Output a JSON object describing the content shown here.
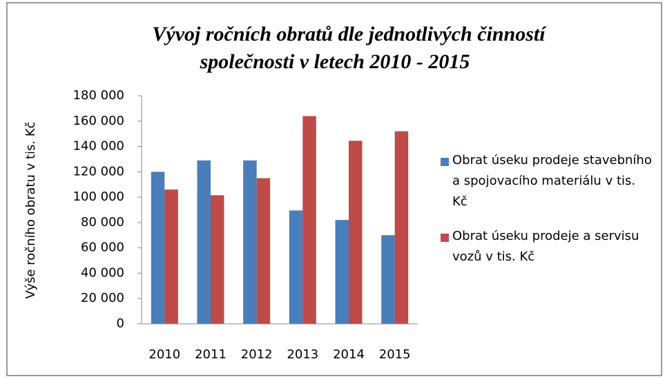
{
  "chart_data": {
    "type": "bar",
    "title": [
      "Vývoj ročních obratů dle jednotlivých činností",
      "společnosti v letech 2010 - 2015"
    ],
    "y_label": "Výše ročního obratu v tis. Kč",
    "categories": [
      "2010",
      "2011",
      "2012",
      "2013",
      "2014",
      "2015"
    ],
    "series": [
      {
        "name": "Obrat úseku prodeje stavebního a spojovacího materiálu v tis. Kč",
        "color": "#4a7ebb",
        "values": [
          120000,
          129000,
          129000,
          89500,
          82000,
          70000
        ]
      },
      {
        "name": "Obrat úseku prodeje a servisu vozů v tis. Kč",
        "color": "#be4b48",
        "values": [
          106000,
          101500,
          115000,
          164000,
          144500,
          152000
        ]
      }
    ],
    "ylim": [
      0,
      180000
    ],
    "yticks": [
      0,
      {
        "value": 20000,
        "label": "20 000"
      },
      {
        "value": 40000,
        "label": "40 000"
      },
      {
        "value": 60000,
        "label": "60 000"
      },
      {
        "value": 80000,
        "label": "80 000"
      },
      {
        "value": 100000,
        "label": "100 000"
      },
      {
        "value": 120000,
        "label": "120 000"
      },
      {
        "value": 140000,
        "label": "140 000"
      },
      {
        "value": 160000,
        "label": "160 000"
      },
      {
        "value": 180000,
        "label": "180 000"
      }
    ],
    "grid": false,
    "legend": "right"
  }
}
